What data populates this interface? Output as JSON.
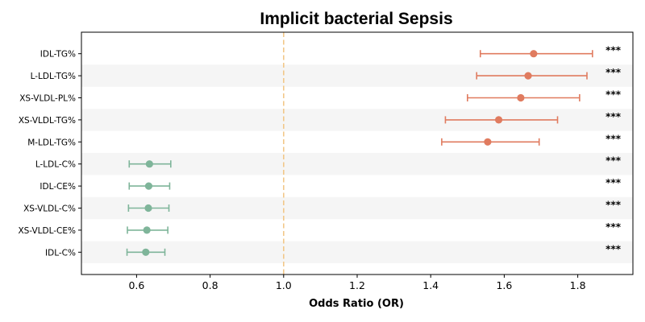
{
  "chart_data": {
    "type": "scatter",
    "subtype": "forest-plot",
    "title": "Implicit bacterial Sepsis",
    "xlabel": "Odds Ratio (OR)",
    "ylabel": "",
    "xlim": [
      0.45,
      1.95
    ],
    "xticks": [
      0.6,
      0.8,
      1.0,
      1.2,
      1.4,
      1.6,
      1.8
    ],
    "xtick_labels": [
      "0.6",
      "0.8",
      "1.0",
      "1.2",
      "1.4",
      "1.6",
      "1.8"
    ],
    "reference_line": 1.0,
    "grid": false,
    "row_striping": true,
    "colors": {
      "risk": "#e07b5f",
      "protective": "#7fb59a",
      "reference": "#f2c88a",
      "stripe": "#f5f5f5"
    },
    "categories": [
      "IDL-TG%",
      "L-LDL-TG%",
      "XS-VLDL-PL%",
      "XS-VLDL-TG%",
      "M-LDL-TG%",
      "L-LDL-C%",
      "IDL-CE%",
      "XS-VLDL-C%",
      "XS-VLDL-CE%",
      "IDL-C%"
    ],
    "or": [
      1.68,
      1.665,
      1.645,
      1.585,
      1.555,
      0.635,
      0.633,
      0.632,
      0.628,
      0.625
    ],
    "ci_low": [
      1.535,
      1.525,
      1.5,
      1.44,
      1.43,
      0.58,
      0.58,
      0.578,
      0.575,
      0.574
    ],
    "ci_high": [
      1.84,
      1.825,
      1.805,
      1.745,
      1.695,
      0.693,
      0.69,
      0.688,
      0.685,
      0.677
    ],
    "significance": [
      "***",
      "***",
      "***",
      "***",
      "***",
      "***",
      "***",
      "***",
      "***",
      "***"
    ]
  }
}
